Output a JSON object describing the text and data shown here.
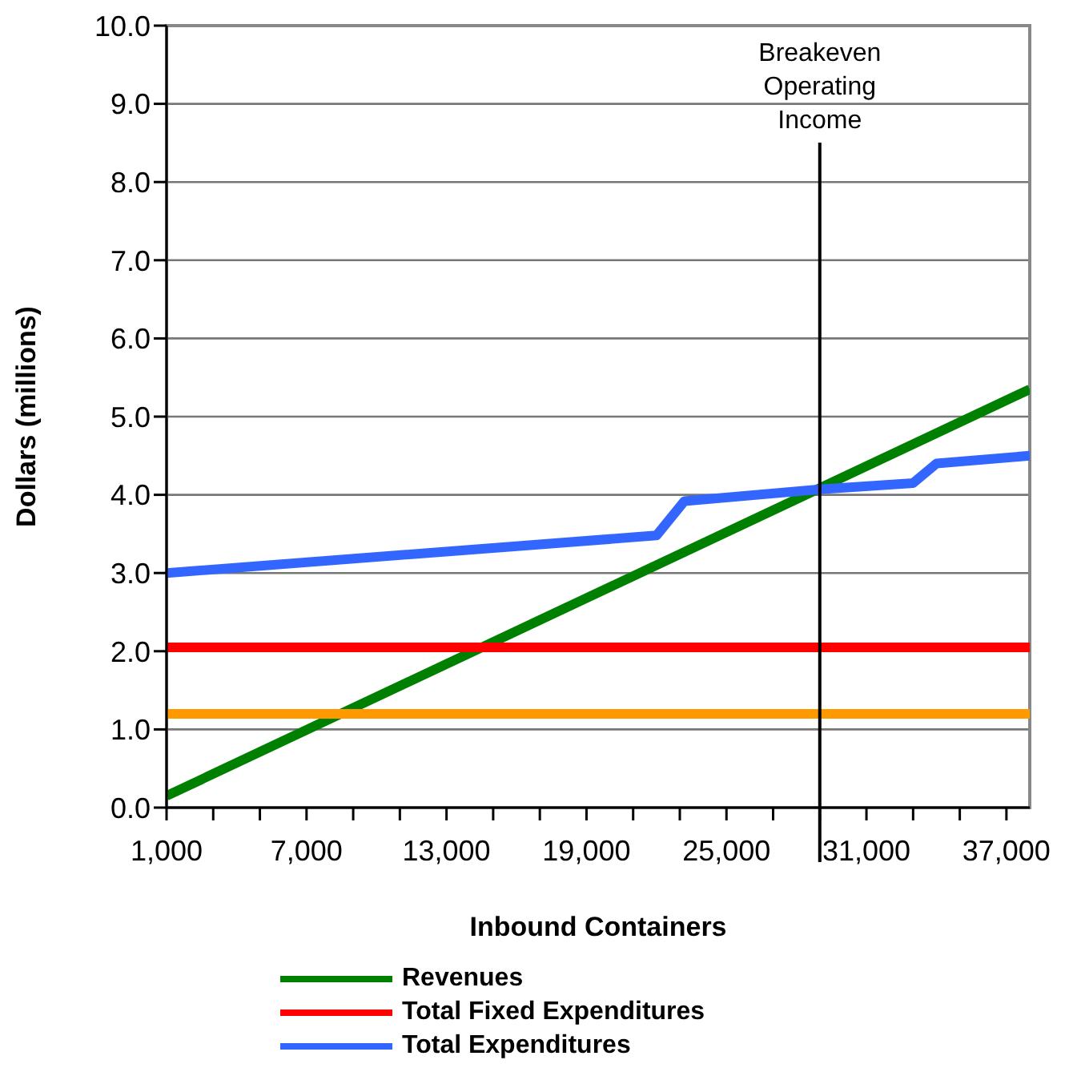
{
  "chart_data": {
    "type": "line",
    "xlabel": "Inbound Containers",
    "ylabel": "Dollars (millions)",
    "xlim": [
      1000,
      38000
    ],
    "ylim": [
      0,
      10
    ],
    "xticks": [
      {
        "value": 1000,
        "label": "1,000"
      },
      {
        "value": 3000,
        "label": null
      },
      {
        "value": 5000,
        "label": null
      },
      {
        "value": 7000,
        "label": "7,000"
      },
      {
        "value": 9000,
        "label": null
      },
      {
        "value": 11000,
        "label": null
      },
      {
        "value": 13000,
        "label": "13,000"
      },
      {
        "value": 15000,
        "label": null
      },
      {
        "value": 17000,
        "label": null
      },
      {
        "value": 19000,
        "label": "19,000"
      },
      {
        "value": 21000,
        "label": null
      },
      {
        "value": 23000,
        "label": null
      },
      {
        "value": 25000,
        "label": "25,000"
      },
      {
        "value": 27000,
        "label": null
      },
      {
        "value": 29000,
        "label": null
      },
      {
        "value": 31000,
        "label": "31,000"
      },
      {
        "value": 33000,
        "label": null
      },
      {
        "value": 35000,
        "label": null
      },
      {
        "value": 37000,
        "label": "37,000"
      }
    ],
    "yticks": [
      {
        "value": 0,
        "label": "0.0"
      },
      {
        "value": 1,
        "label": "1.0"
      },
      {
        "value": 2,
        "label": "2.0"
      },
      {
        "value": 3,
        "label": "3.0"
      },
      {
        "value": 4,
        "label": "4.0"
      },
      {
        "value": 5,
        "label": "5.0"
      },
      {
        "value": 6,
        "label": "6.0"
      },
      {
        "value": 7,
        "label": "7.0"
      },
      {
        "value": 8,
        "label": "8.0"
      },
      {
        "value": 9,
        "label": "9.0"
      },
      {
        "value": 10,
        "label": "10.0"
      }
    ],
    "grid": "y",
    "legend": "bottom",
    "ref_lines": [
      {
        "axis": "x",
        "value": 29000,
        "label": "Breakeven Operating Income",
        "color": "#000000"
      }
    ],
    "series": [
      {
        "name": "Revenues",
        "color": "#008000",
        "x": [
          1000,
          38000
        ],
        "values": [
          0.15,
          5.35
        ]
      },
      {
        "name": "Total Fixed Expenditures",
        "color": "#ff0000",
        "x": [
          1000,
          38000
        ],
        "values": [
          2.05,
          2.05
        ]
      },
      {
        "name": "Total Expenditures",
        "color": "#3366ff",
        "x": [
          1000,
          22000,
          23200,
          29000,
          33000,
          34000,
          38000
        ],
        "values": [
          3.0,
          3.48,
          3.92,
          4.07,
          4.15,
          4.4,
          4.5
        ]
      },
      {
        "color": "#ff9900",
        "x": [
          1000,
          38000
        ],
        "values": [
          1.2,
          1.2
        ]
      }
    ]
  }
}
